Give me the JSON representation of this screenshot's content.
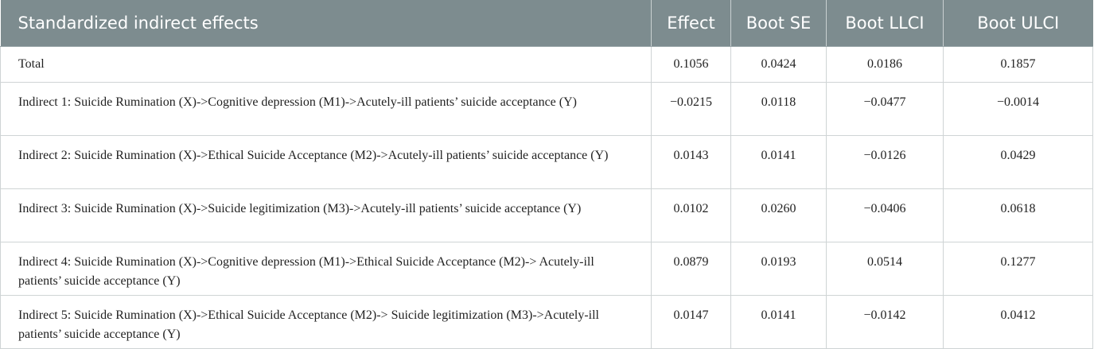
{
  "table": {
    "headers": {
      "label": "Standardized indirect effects",
      "effect": "Effect",
      "boot_se": "Boot SE",
      "boot_llci": "Boot LLCI",
      "boot_ulci": "Boot ULCI"
    },
    "rows": [
      {
        "label": "Total",
        "effect": "0.1056",
        "boot_se": "0.0424",
        "boot_llci": "0.0186",
        "boot_ulci": "0.1857"
      },
      {
        "label": "Indirect 1: Suicide Rumination (X)->Cognitive depression (M1)->Acutely-ill patients’ suicide acceptance (Y)",
        "effect": "−0.0215",
        "boot_se": "0.0118",
        "boot_llci": "−0.0477",
        "boot_ulci": "−0.0014"
      },
      {
        "label": "Indirect 2: Suicide Rumination (X)->Ethical Suicide Acceptance (M2)->Acutely-ill patients’ suicide acceptance (Y)",
        "effect": "0.0143",
        "boot_se": "0.0141",
        "boot_llci": "−0.0126",
        "boot_ulci": "0.0429"
      },
      {
        "label": "Indirect 3: Suicide Rumination (X)->Suicide legitimization (M3)->Acutely-ill patients’ suicide acceptance (Y)",
        "effect": "0.0102",
        "boot_se": "0.0260",
        "boot_llci": "−0.0406",
        "boot_ulci": "0.0618"
      },
      {
        "label": "Indirect 4: Suicide Rumination (X)->Cognitive depression (M1)->Ethical Suicide Acceptance (M2)-> Acutely-ill patients’ suicide acceptance (Y)",
        "effect": "0.0879",
        "boot_se": "0.0193",
        "boot_llci": "0.0514",
        "boot_ulci": "0.1277"
      },
      {
        "label": "Indirect 5: Suicide Rumination (X)->Ethical Suicide Acceptance (M2)-> Suicide legitimization (M3)->Acutely-ill patients’ suicide acceptance (Y)",
        "effect": "0.0147",
        "boot_se": "0.0141",
        "boot_llci": "−0.0142",
        "boot_ulci": "0.0412"
      }
    ]
  }
}
